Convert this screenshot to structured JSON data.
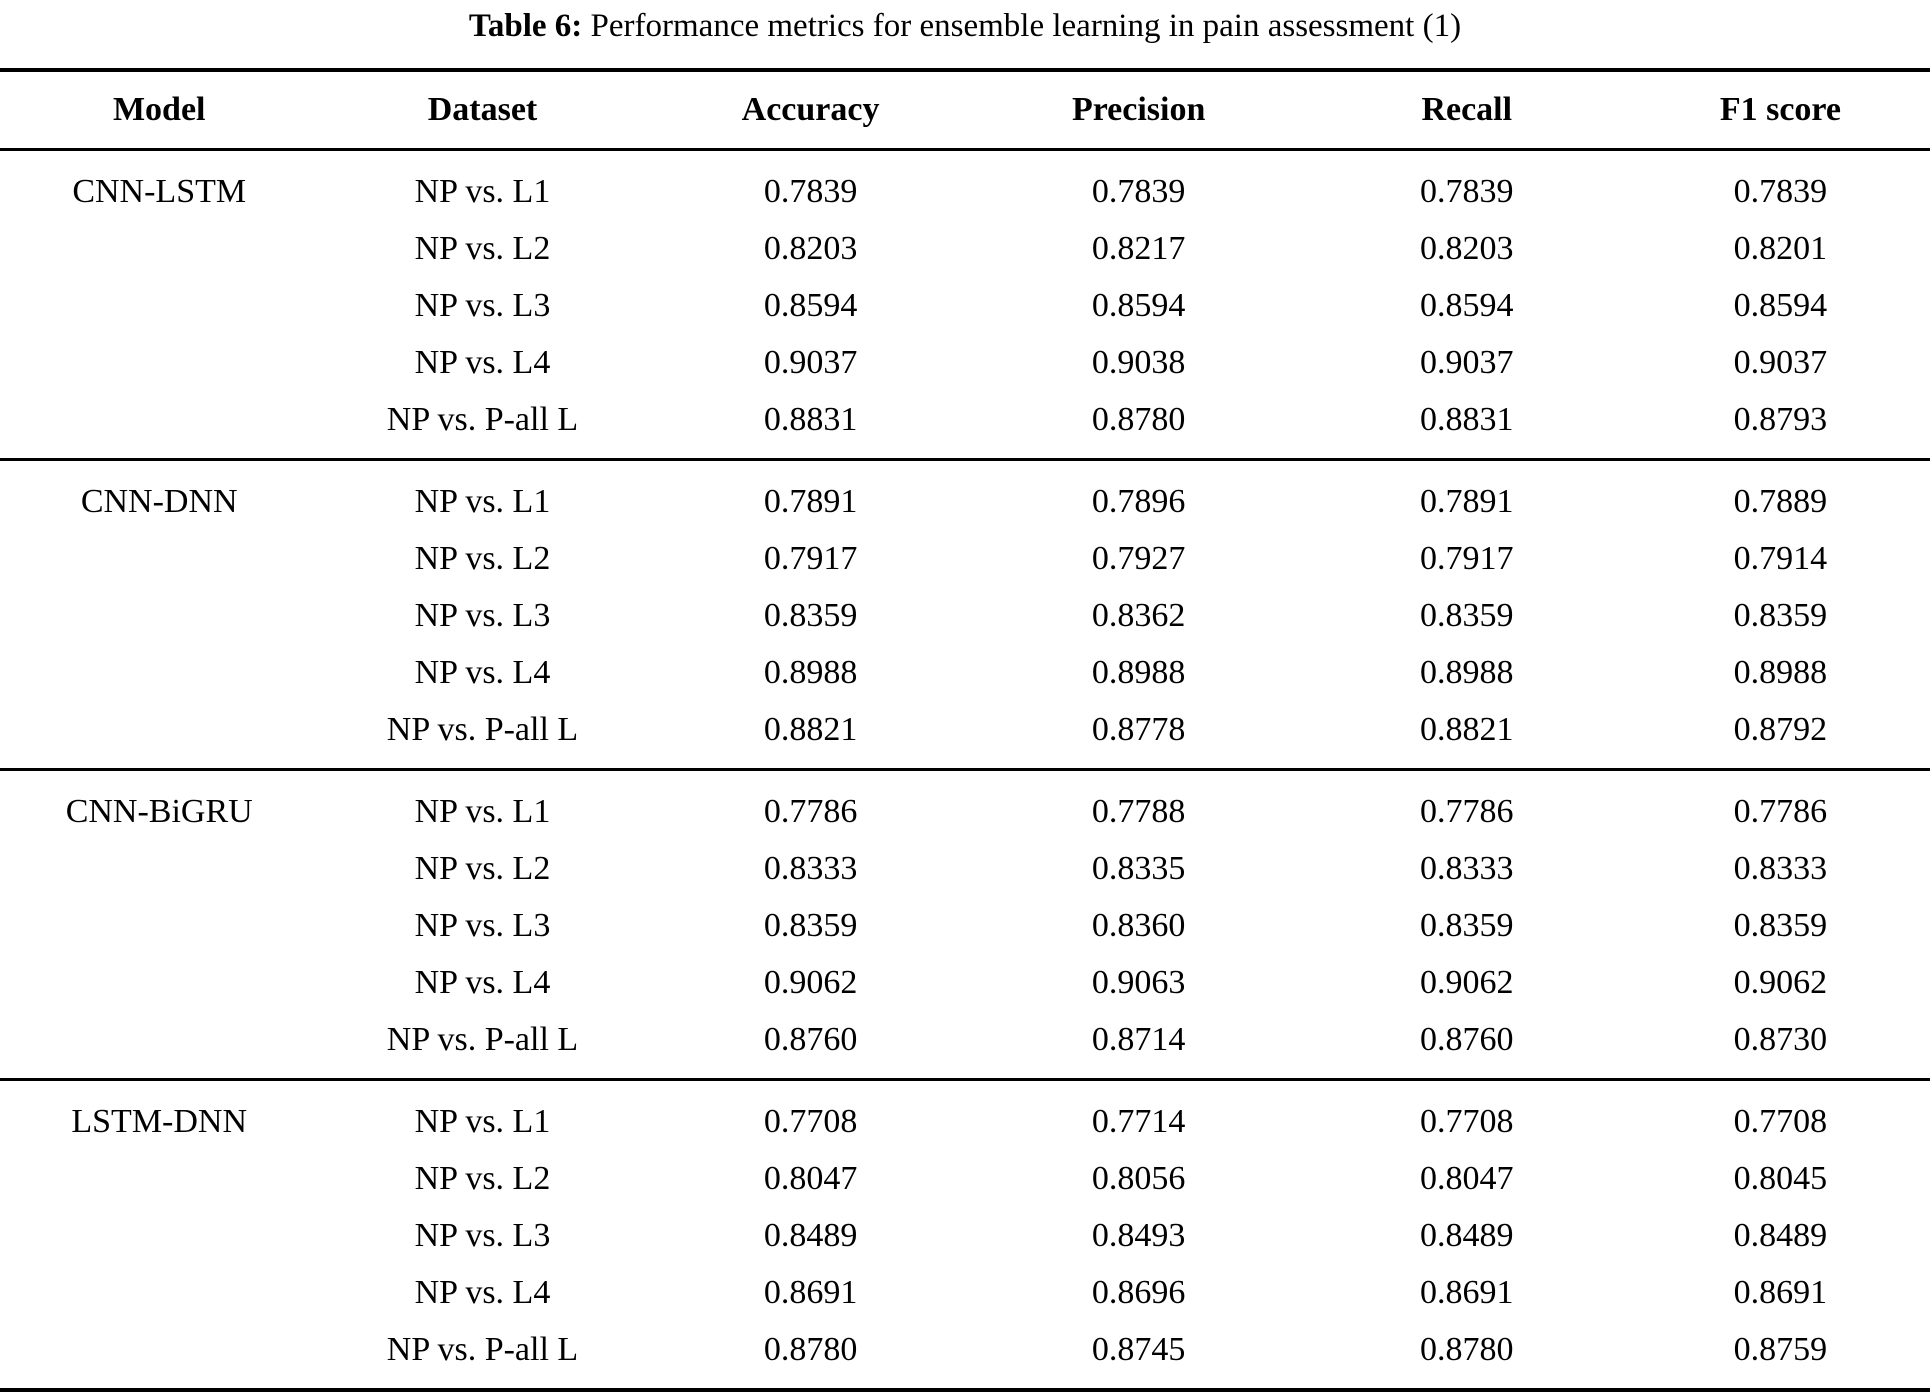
{
  "caption": {
    "label": "Table 6:",
    "text": " Performance metrics for ensemble learning in pain assessment (1)"
  },
  "colors": {
    "text": "#000000",
    "background": "#ffffff",
    "rule": "#000000"
  },
  "table": {
    "columns": [
      "Model",
      "Dataset",
      "Accuracy",
      "Precision",
      "Recall",
      "F1 score"
    ],
    "groups": [
      {
        "model": "CNN-LSTM",
        "rows": [
          {
            "dataset": "NP vs. L1",
            "values": [
              "0.7839",
              "0.7839",
              "0.7839",
              "0.7839"
            ]
          },
          {
            "dataset": "NP vs. L2",
            "values": [
              "0.8203",
              "0.8217",
              "0.8203",
              "0.8201"
            ]
          },
          {
            "dataset": "NP vs. L3",
            "values": [
              "0.8594",
              "0.8594",
              "0.8594",
              "0.8594"
            ]
          },
          {
            "dataset": "NP vs. L4",
            "values": [
              "0.9037",
              "0.9038",
              "0.9037",
              "0.9037"
            ]
          },
          {
            "dataset": "NP vs. P-all L",
            "values": [
              "0.8831",
              "0.8780",
              "0.8831",
              "0.8793"
            ]
          }
        ]
      },
      {
        "model": "CNN-DNN",
        "rows": [
          {
            "dataset": "NP vs. L1",
            "values": [
              "0.7891",
              "0.7896",
              "0.7891",
              "0.7889"
            ]
          },
          {
            "dataset": "NP vs. L2",
            "values": [
              "0.7917",
              "0.7927",
              "0.7917",
              "0.7914"
            ]
          },
          {
            "dataset": "NP vs. L3",
            "values": [
              "0.8359",
              "0.8362",
              "0.8359",
              "0.8359"
            ]
          },
          {
            "dataset": "NP vs. L4",
            "values": [
              "0.8988",
              "0.8988",
              "0.8988",
              "0.8988"
            ]
          },
          {
            "dataset": "NP vs. P-all L",
            "values": [
              "0.8821",
              "0.8778",
              "0.8821",
              "0.8792"
            ]
          }
        ]
      },
      {
        "model": "CNN-BiGRU",
        "rows": [
          {
            "dataset": "NP vs. L1",
            "values": [
              "0.7786",
              "0.7788",
              "0.7786",
              "0.7786"
            ]
          },
          {
            "dataset": "NP vs. L2",
            "values": [
              "0.8333",
              "0.8335",
              "0.8333",
              "0.8333"
            ]
          },
          {
            "dataset": "NP vs. L3",
            "values": [
              "0.8359",
              "0.8360",
              "0.8359",
              "0.8359"
            ]
          },
          {
            "dataset": "NP vs. L4",
            "values": [
              "0.9062",
              "0.9063",
              "0.9062",
              "0.9062"
            ]
          },
          {
            "dataset": "NP vs. P-all L",
            "values": [
              "0.8760",
              "0.8714",
              "0.8760",
              "0.8730"
            ]
          }
        ]
      },
      {
        "model": "LSTM-DNN",
        "rows": [
          {
            "dataset": "NP vs. L1",
            "values": [
              "0.7708",
              "0.7714",
              "0.7708",
              "0.7708"
            ]
          },
          {
            "dataset": "NP vs. L2",
            "values": [
              "0.8047",
              "0.8056",
              "0.8047",
              "0.8045"
            ]
          },
          {
            "dataset": "NP vs. L3",
            "values": [
              "0.8489",
              "0.8493",
              "0.8489",
              "0.8489"
            ]
          },
          {
            "dataset": "NP vs. L4",
            "values": [
              "0.8691",
              "0.8696",
              "0.8691",
              "0.8691"
            ]
          },
          {
            "dataset": "NP vs. P-all L",
            "values": [
              "0.8780",
              "0.8745",
              "0.8780",
              "0.8759"
            ]
          }
        ]
      }
    ]
  }
}
